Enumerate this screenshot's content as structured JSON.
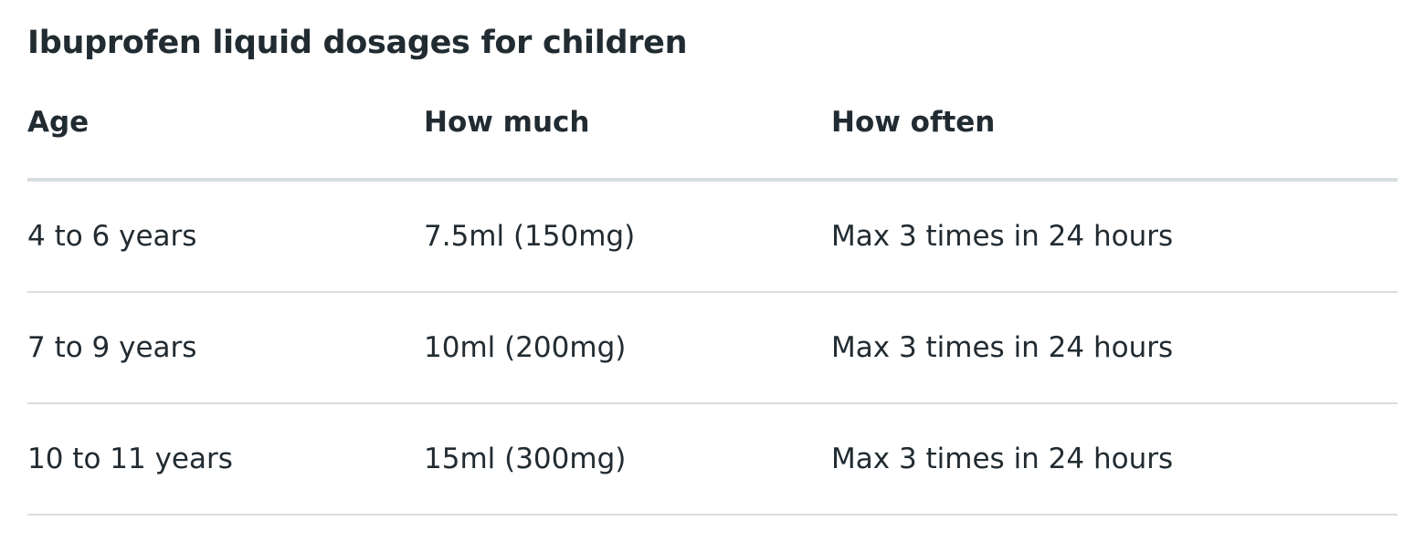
{
  "title": "Ibuprofen liquid dosages for children",
  "table": {
    "headers": [
      "Age",
      "How much",
      "How often"
    ],
    "rows": [
      [
        "4 to 6 years",
        "7.5ml (150mg)",
        "Max 3 times in 24 hours"
      ],
      [
        "7 to 9 years",
        "10ml (200mg)",
        "Max 3 times in 24 hours"
      ],
      [
        "10 to 11 years",
        "15ml (300mg)",
        "Max 3 times in 24 hours"
      ]
    ]
  }
}
